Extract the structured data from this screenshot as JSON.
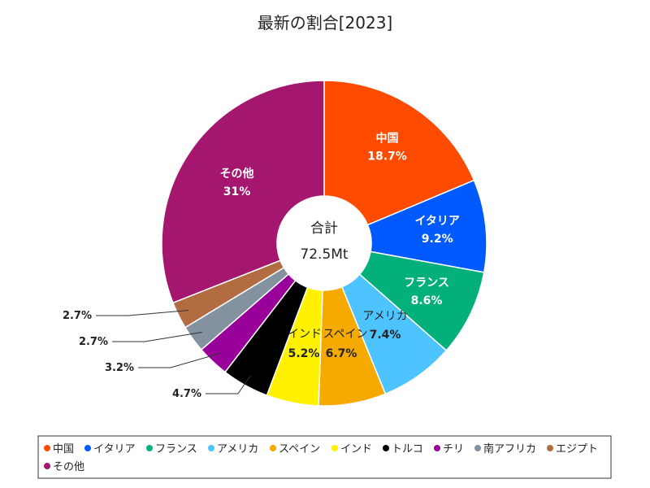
{
  "chart_data": {
    "type": "pie",
    "title": "最新の割合[2023]",
    "center_label": "合計",
    "total_label": "72.5Mt",
    "slices": [
      {
        "name": "中国",
        "percent": 18.7,
        "label": "18.7%",
        "color": "#ff4b00"
      },
      {
        "name": "イタリア",
        "percent": 9.2,
        "label": "9.2%",
        "color": "#005aff"
      },
      {
        "name": "フランス",
        "percent": 8.6,
        "label": "8.6%",
        "color": "#03af7a"
      },
      {
        "name": "アメリカ",
        "percent": 7.4,
        "label": "7.4%",
        "color": "#4dc4ff"
      },
      {
        "name": "スペイン",
        "percent": 6.7,
        "label": "6.7%",
        "color": "#f6aa00"
      },
      {
        "name": "インド",
        "percent": 5.2,
        "label": "5.2%",
        "color": "#fff100"
      },
      {
        "name": "トルコ",
        "percent": 4.7,
        "label": "4.7%",
        "color": "#000000"
      },
      {
        "name": "チリ",
        "percent": 3.2,
        "label": "3.2%",
        "color": "#990099"
      },
      {
        "name": "南アフリカ",
        "percent": 2.7,
        "label": "2.7%",
        "color": "#84919e"
      },
      {
        "name": "エジプト",
        "percent": 2.7,
        "label": "2.7%",
        "color": "#b36c42"
      },
      {
        "name": "その他",
        "percent": 31,
        "label": "31%",
        "color": "#a5176f"
      }
    ],
    "legend_position": "bottom"
  }
}
